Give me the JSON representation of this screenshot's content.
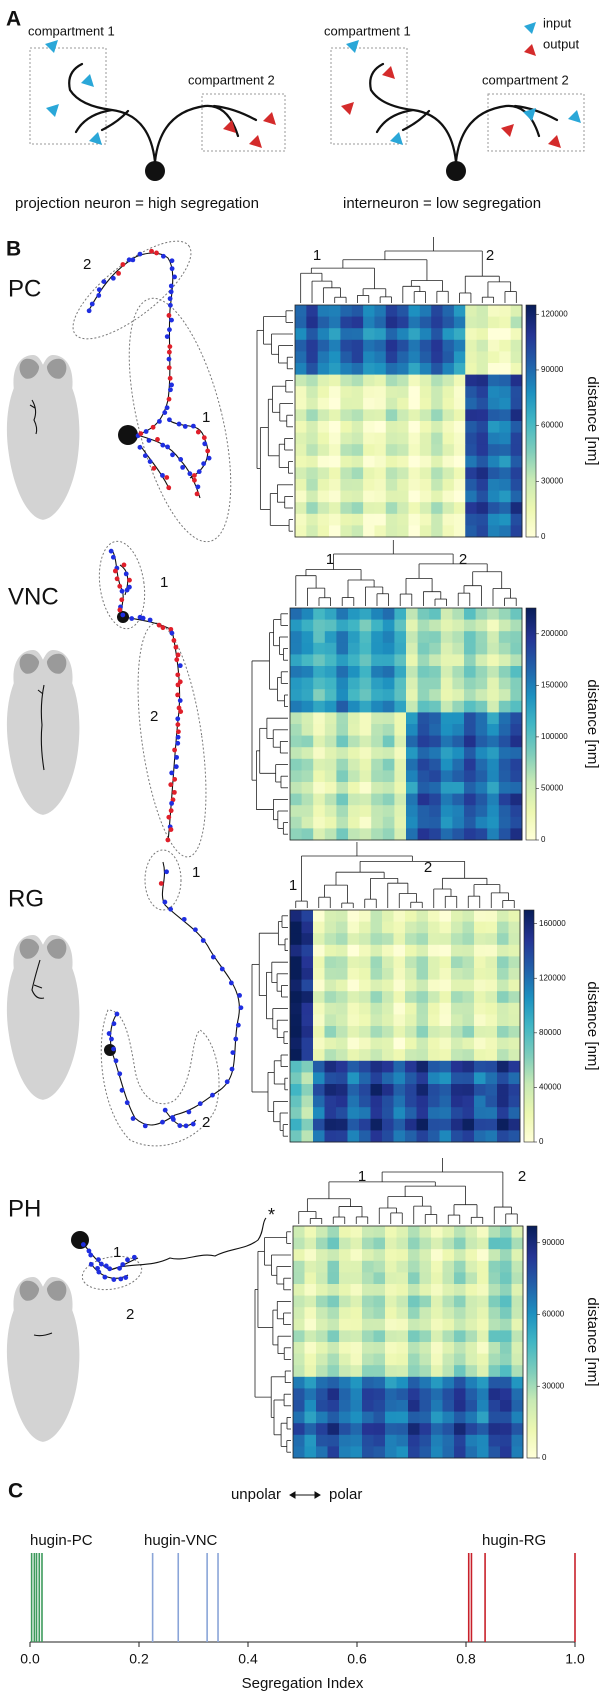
{
  "panel_a": {
    "label": "A",
    "left": {
      "compartments": [
        "compartment 1",
        "compartment 2"
      ],
      "caption": "projection neuron = high segregation"
    },
    "right": {
      "compartments": [
        "compartment 1",
        "compartment 2"
      ],
      "caption": "interneuron = low segregation"
    },
    "legend": [
      "input",
      "output"
    ]
  },
  "panel_b": {
    "label": "B",
    "colorbar_label": "distance [nm]",
    "rows": [
      {
        "name": "PC",
        "color": "#6fae6f",
        "neuron_labels": [
          "1",
          "2"
        ],
        "dendrogram_labels": [
          "1",
          "2"
        ],
        "colorbar": {
          "lim": [
            0,
            125000
          ],
          "ticks": [
            0,
            30000,
            60000,
            90000,
            120000
          ]
        }
      },
      {
        "name": "VNC",
        "color": "#7f9bd6",
        "neuron_labels": [
          "1",
          "2"
        ],
        "dendrogram_labels": [
          "1",
          "2"
        ],
        "colorbar": {
          "lim": [
            0,
            225000
          ],
          "ticks": [
            0,
            50000,
            100000,
            150000,
            200000
          ]
        }
      },
      {
        "name": "RG",
        "color": "#e03a2a",
        "neuron_labels": [
          "1",
          "2"
        ],
        "dendrogram_labels": [
          "1",
          "2"
        ],
        "colorbar": {
          "lim": [
            0,
            170000
          ],
          "ticks": [
            0,
            40000,
            80000,
            120000,
            160000
          ]
        }
      },
      {
        "name": "PH",
        "color": "#f28c28",
        "neuron_labels": [
          "1",
          "2"
        ],
        "dendrogram_labels": [
          "1",
          "2"
        ],
        "annotation": "*",
        "colorbar": {
          "lim": [
            0,
            97000
          ],
          "ticks": [
            0,
            30000,
            60000,
            90000
          ]
        }
      }
    ]
  },
  "panel_c": {
    "label": "C",
    "axis_left": "unpolar",
    "axis_right": "polar",
    "x_label": "Segregation Index",
    "xlim": [
      0,
      1
    ],
    "xticks": [
      {
        "value": 0,
        "label": "0.0"
      },
      0.2,
      0.4,
      0.6,
      0.8,
      {
        "value": 1,
        "label": "1.0"
      }
    ],
    "groups": [
      {
        "name": "hugin-PC",
        "label_color": "#3aaa50",
        "color": "#3d9a5c",
        "values": [
          0.003,
          0.008,
          0.012,
          0.017,
          0.022
        ]
      },
      {
        "name": "hugin-VNC",
        "label_color": "#3399cc",
        "color": "#8aa5d8",
        "values": [
          0.225,
          0.272,
          0.325,
          0.345
        ]
      },
      {
        "name": "hugin-RG",
        "label_color": "#dd2255",
        "color": "#c8202a",
        "values": [
          0.805,
          0.81,
          0.835,
          1.0
        ]
      }
    ]
  }
}
